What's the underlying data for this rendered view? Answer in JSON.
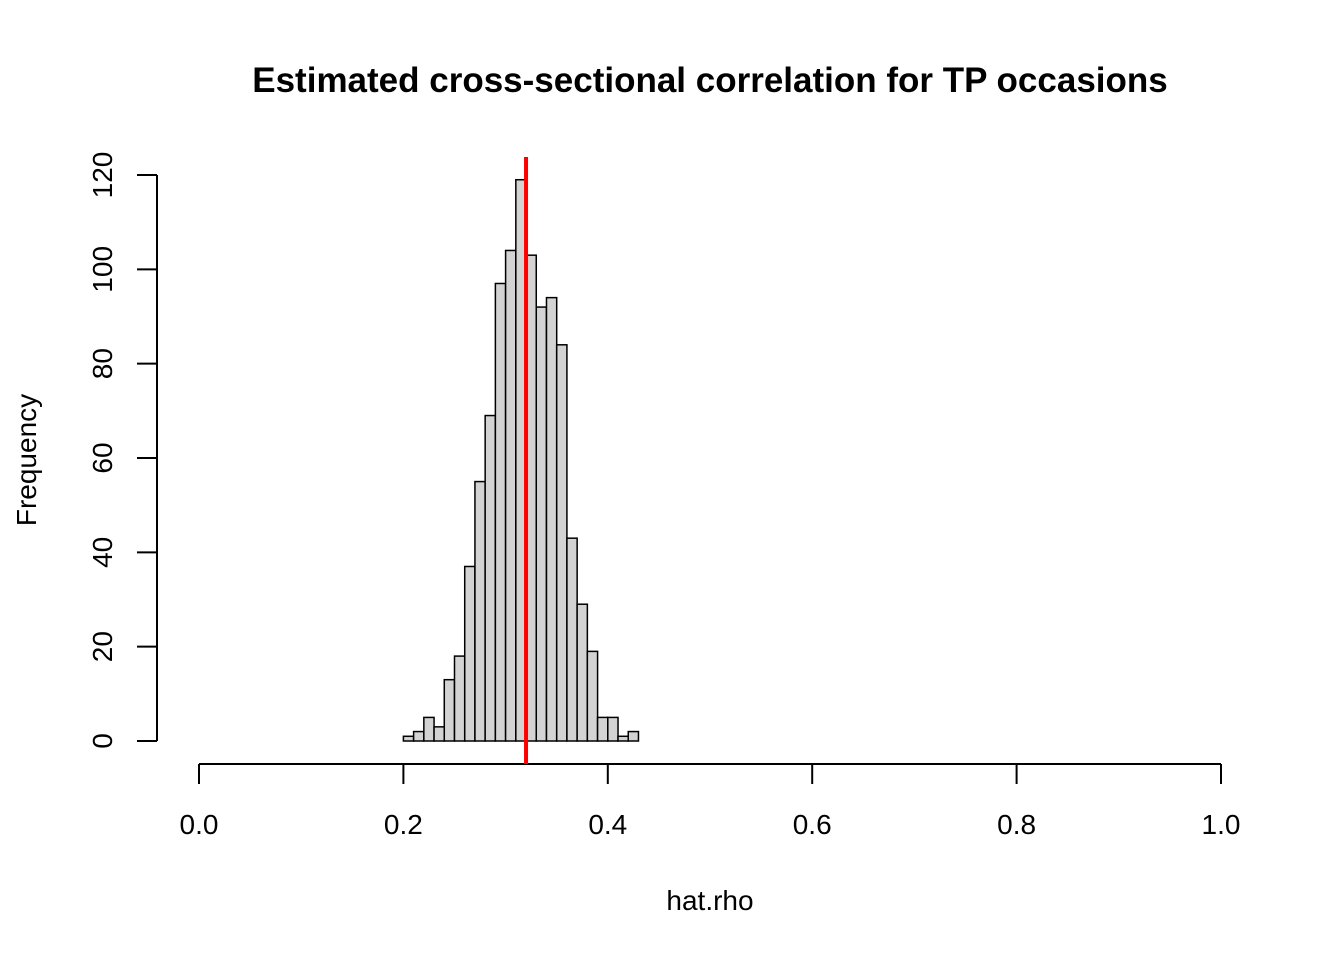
{
  "chart_data": {
    "type": "histogram",
    "title": "Estimated cross-sectional correlation for TP occasions",
    "xlabel": "hat.rho",
    "ylabel": "Frequency",
    "xlim": [
      0,
      1
    ],
    "ylim": [
      0,
      120
    ],
    "x_ticks": [
      "0.0",
      "0.2",
      "0.4",
      "0.6",
      "0.8",
      "1.0"
    ],
    "y_ticks": [
      "0",
      "20",
      "40",
      "60",
      "80",
      "100",
      "120"
    ],
    "bin_width": 0.01,
    "bins": [
      {
        "x0": 0.2,
        "x1": 0.21,
        "count": 1
      },
      {
        "x0": 0.21,
        "x1": 0.22,
        "count": 2
      },
      {
        "x0": 0.22,
        "x1": 0.23,
        "count": 5
      },
      {
        "x0": 0.23,
        "x1": 0.24,
        "count": 3
      },
      {
        "x0": 0.24,
        "x1": 0.25,
        "count": 13
      },
      {
        "x0": 0.25,
        "x1": 0.26,
        "count": 18
      },
      {
        "x0": 0.26,
        "x1": 0.27,
        "count": 37
      },
      {
        "x0": 0.27,
        "x1": 0.28,
        "count": 55
      },
      {
        "x0": 0.28,
        "x1": 0.29,
        "count": 69
      },
      {
        "x0": 0.29,
        "x1": 0.3,
        "count": 97
      },
      {
        "x0": 0.3,
        "x1": 0.31,
        "count": 104
      },
      {
        "x0": 0.31,
        "x1": 0.32,
        "count": 119
      },
      {
        "x0": 0.32,
        "x1": 0.33,
        "count": 103
      },
      {
        "x0": 0.33,
        "x1": 0.34,
        "count": 92
      },
      {
        "x0": 0.34,
        "x1": 0.35,
        "count": 94
      },
      {
        "x0": 0.35,
        "x1": 0.36,
        "count": 84
      },
      {
        "x0": 0.36,
        "x1": 0.37,
        "count": 43
      },
      {
        "x0": 0.37,
        "x1": 0.38,
        "count": 29
      },
      {
        "x0": 0.38,
        "x1": 0.39,
        "count": 19
      },
      {
        "x0": 0.39,
        "x1": 0.4,
        "count": 5
      },
      {
        "x0": 0.4,
        "x1": 0.41,
        "count": 5
      },
      {
        "x0": 0.41,
        "x1": 0.42,
        "count": 1
      },
      {
        "x0": 0.42,
        "x1": 0.43,
        "count": 2
      }
    ],
    "reference_line": {
      "x": 0.32,
      "color": "#ff0000"
    },
    "bar_fill": "#d3d3d3",
    "bar_stroke": "#000000",
    "grid": false
  }
}
